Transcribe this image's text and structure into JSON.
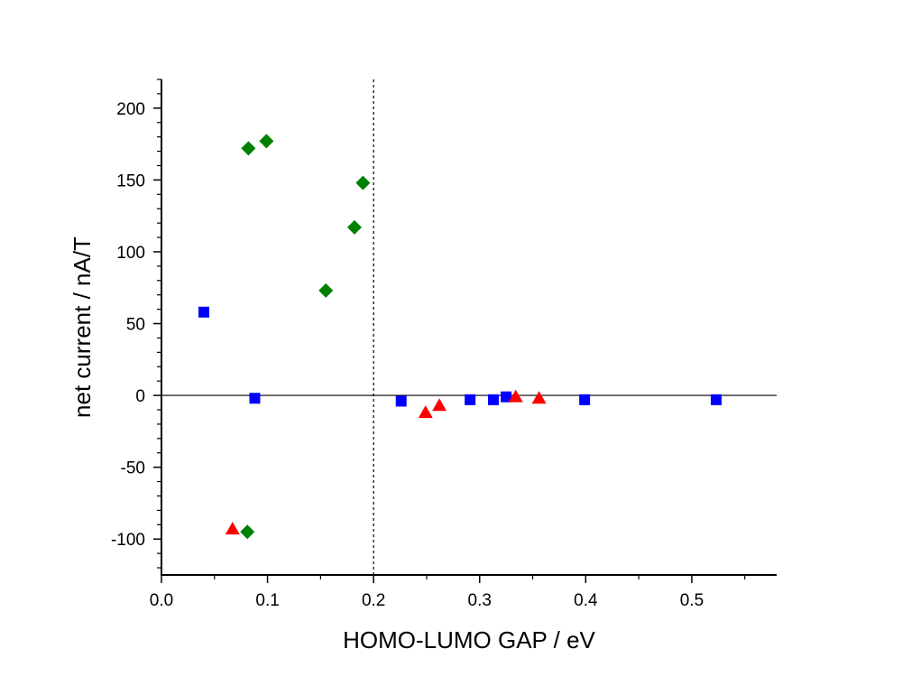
{
  "chart_data": {
    "type": "scatter",
    "title": "",
    "xlabel": "HOMO-LUMO GAP / eV",
    "ylabel": "net current / nA/T",
    "xlim": [
      0.0,
      0.58
    ],
    "ylim": [
      -125,
      220
    ],
    "x_ticks": [
      0.0,
      0.1,
      0.2,
      0.3,
      0.4,
      0.5
    ],
    "x_tick_labels": [
      "0.0",
      "0.1",
      "0.2",
      "0.3",
      "0.4",
      "0.5"
    ],
    "y_ticks": [
      -100,
      -50,
      0,
      50,
      100,
      150,
      200
    ],
    "y_tick_labels": [
      "-100",
      "-50",
      "0",
      "50",
      "100",
      "150",
      "200"
    ],
    "grid": false,
    "legend": "none",
    "reference_lines": [
      {
        "orientation": "horizontal",
        "value": 0,
        "style": "solid"
      },
      {
        "orientation": "vertical",
        "value": 0.2,
        "style": "dashed"
      }
    ],
    "series": [
      {
        "marker": "square",
        "color": "#0000ff",
        "points": [
          {
            "x": 0.04,
            "y": 58
          },
          {
            "x": 0.088,
            "y": -2
          },
          {
            "x": 0.226,
            "y": -4
          },
          {
            "x": 0.291,
            "y": -3
          },
          {
            "x": 0.313,
            "y": -3
          },
          {
            "x": 0.325,
            "y": -1
          },
          {
            "x": 0.399,
            "y": -3
          },
          {
            "x": 0.523,
            "y": -3
          }
        ]
      },
      {
        "marker": "diamond",
        "color": "#008000",
        "points": [
          {
            "x": 0.082,
            "y": 172
          },
          {
            "x": 0.099,
            "y": 177
          },
          {
            "x": 0.19,
            "y": 148
          },
          {
            "x": 0.182,
            "y": 117
          },
          {
            "x": 0.155,
            "y": 73
          },
          {
            "x": 0.081,
            "y": -95
          }
        ]
      },
      {
        "marker": "triangle-up",
        "color": "#ff0000",
        "points": [
          {
            "x": 0.067,
            "y": -93
          },
          {
            "x": 0.249,
            "y": -12
          },
          {
            "x": 0.262,
            "y": -7
          },
          {
            "x": 0.334,
            "y": -1
          },
          {
            "x": 0.356,
            "y": -2
          }
        ]
      }
    ]
  }
}
